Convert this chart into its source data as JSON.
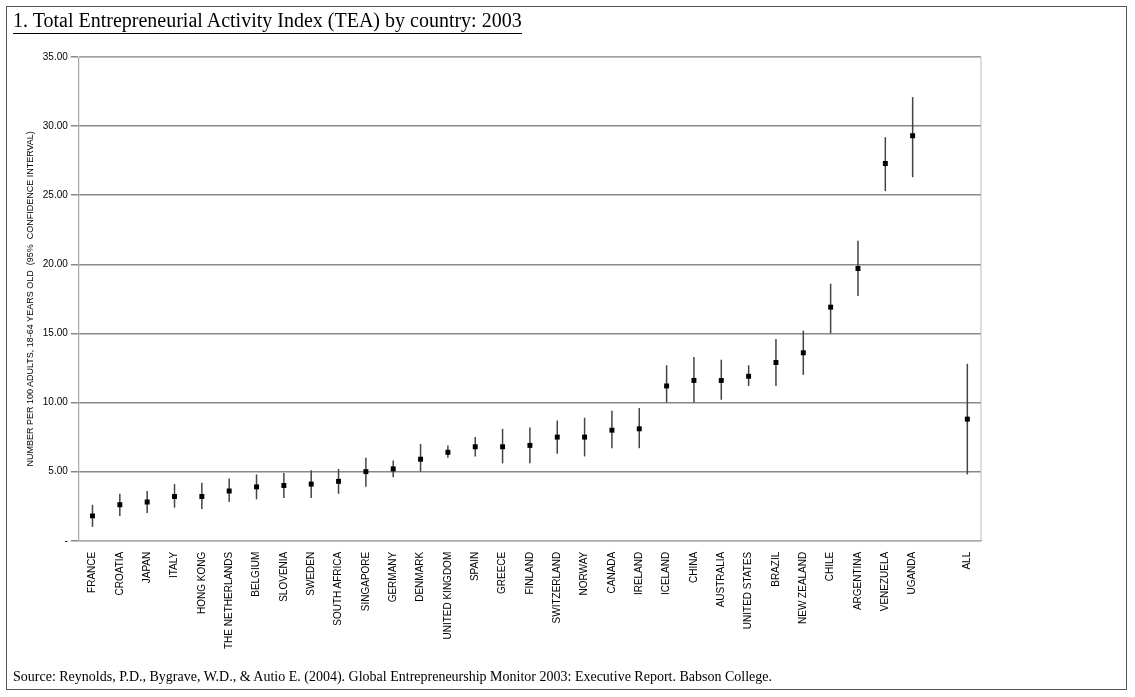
{
  "chart_data": {
    "type": "scatter",
    "title": "1. Total Entrepreneurial Activity Index (TEA) by country: 2003",
    "ylabel": "NUMBER PER 100 ADULTS, 18-64 YEARS OLD  (95%  CONFIDENCE INTERVAL)",
    "categories": [
      "FRANCE",
      "CROATIA",
      "JAPAN",
      "ITALY",
      "HONG KONG",
      "THE NETHERLANDS",
      "BELGIUM",
      "SLOVENIA",
      "SWEDEN",
      "SOUTH AFRICA",
      "SINGAPORE",
      "GERMANY",
      "DENMARK",
      "UNITED KINGDOM",
      "SPAIN",
      "GREECE",
      "FINLAND",
      "SWITZERLAND",
      "NORWAY",
      "CANADA",
      "IRELAND",
      "ICELAND",
      "CHINA",
      "AUSTRALIA",
      "UNITED STATES",
      "BRAZIL",
      "NEW ZEALAND",
      "CHILE",
      "ARGENTINA",
      "VENEZUELA",
      "UGANDA",
      null,
      "ALL"
    ],
    "values": [
      1.8,
      2.6,
      2.8,
      3.2,
      3.2,
      3.6,
      3.9,
      4.0,
      4.1,
      4.3,
      5.0,
      5.2,
      5.9,
      6.4,
      6.8,
      6.8,
      6.9,
      7.5,
      7.5,
      8.0,
      8.1,
      11.2,
      11.6,
      11.6,
      11.9,
      12.9,
      13.6,
      16.9,
      19.7,
      27.3,
      29.3,
      null,
      8.8
    ],
    "errors": [
      [
        1.0,
        2.6
      ],
      [
        1.8,
        3.4
      ],
      [
        2.0,
        3.6
      ],
      [
        2.4,
        4.1
      ],
      [
        2.3,
        4.2
      ],
      [
        2.8,
        4.5
      ],
      [
        3.0,
        4.8
      ],
      [
        3.1,
        4.9
      ],
      [
        3.1,
        5.1
      ],
      [
        3.4,
        5.2
      ],
      [
        3.9,
        6.0
      ],
      [
        4.6,
        5.8
      ],
      [
        5.0,
        7.0
      ],
      [
        6.0,
        6.9
      ],
      [
        6.1,
        7.5
      ],
      [
        5.6,
        8.1
      ],
      [
        5.6,
        8.2
      ],
      [
        6.3,
        8.7
      ],
      [
        6.1,
        8.9
      ],
      [
        6.7,
        9.4
      ],
      [
        6.7,
        9.6
      ],
      [
        10.0,
        12.7
      ],
      [
        10.0,
        13.3
      ],
      [
        10.2,
        13.1
      ],
      [
        11.2,
        12.7
      ],
      [
        11.2,
        14.6
      ],
      [
        12.0,
        15.2
      ],
      [
        15.0,
        18.6
      ],
      [
        17.7,
        21.7
      ],
      [
        25.3,
        29.2
      ],
      [
        26.3,
        32.1
      ],
      null,
      [
        4.8,
        12.8
      ]
    ],
    "color": "#000000",
    "marker": "square",
    "ylim": [
      0,
      35
    ],
    "yticks": [
      {
        "value": 0,
        "label": "-"
      },
      {
        "value": 5,
        "label": "5.00"
      },
      {
        "value": 10,
        "label": "10.00"
      },
      {
        "value": 15,
        "label": "15.00"
      },
      {
        "value": 20,
        "label": "20.00"
      },
      {
        "value": 25,
        "label": "25.00"
      },
      {
        "value": 30,
        "label": "30.00"
      },
      {
        "value": 35,
        "label": "35.00"
      }
    ],
    "grid": "y",
    "annotations": [
      "Source: Reynolds, P.D., Bygrave, W.D., & Autio E. (2004). Global Entrepreneurship Monitor 2003: Executive Report. Babson College."
    ]
  }
}
